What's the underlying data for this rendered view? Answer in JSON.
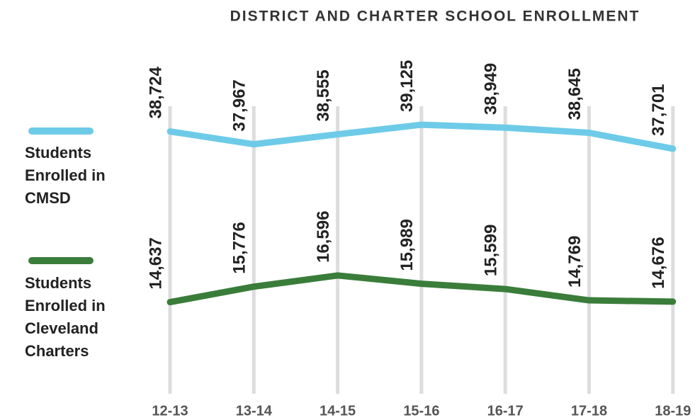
{
  "chart_data": {
    "type": "line",
    "title": "DISTRICT AND CHARTER SCHOOL ENROLLMENT",
    "categories": [
      "12-13",
      "13-14",
      "14-15",
      "15-16",
      "16-17",
      "17-18",
      "18-19"
    ],
    "series": [
      {
        "name": "Students Enrolled in CMSD",
        "color": "#6ecbe8",
        "values": [
          38724,
          37967,
          38555,
          39125,
          38949,
          38645,
          37701
        ],
        "value_labels": [
          "38,724",
          "37,967",
          "38,555",
          "39,125",
          "38,949",
          "38,645",
          "37,701"
        ]
      },
      {
        "name": "Students Enrolled in Cleveland Charters",
        "color": "#3a7d3a",
        "axis": "y2",
        "values": [
          14637,
          15776,
          16596,
          15989,
          15599,
          14769,
          14676
        ],
        "value_labels": [
          "14,637",
          "15,776",
          "16,596",
          "15,989",
          "15,599",
          "14,769",
          "14,676"
        ]
      }
    ],
    "ylim": [
      23000,
      44000
    ],
    "y2lim": [
      7700,
      33700
    ],
    "grid": true,
    "legend": "left"
  }
}
